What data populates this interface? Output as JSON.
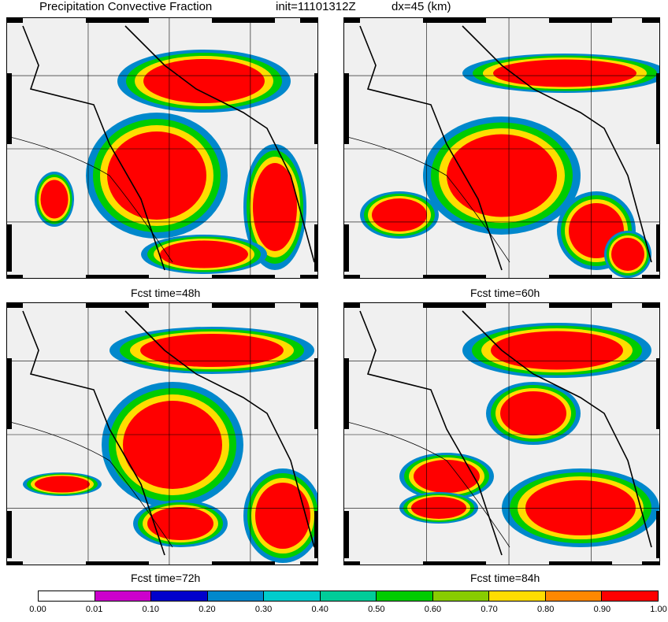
{
  "title": {
    "main": "Precipitation Convective Fraction",
    "init": "init=11101312Z",
    "dx": "dx=45 (km)"
  },
  "panels": [
    {
      "caption": ""
    },
    {
      "caption": ""
    },
    {
      "caption": "Fcst time=48h"
    },
    {
      "caption": "Fcst time=60h"
    }
  ],
  "bottom_captions": [
    "Fcst time=72h",
    "Fcst time=84h"
  ],
  "colorbar": {
    "colors": [
      "#ffffff",
      "#cc00cc",
      "#0000cc",
      "#0088cc",
      "#00cccc",
      "#00cc99",
      "#00cc00",
      "#88cc00",
      "#ffdd00",
      "#ff8800",
      "#ff0000"
    ],
    "ticks": [
      "0.00",
      "0.01",
      "0.10",
      "0.20",
      "0.30",
      "0.40",
      "0.50",
      "0.60",
      "0.70",
      "0.80",
      "0.90",
      "1.00"
    ]
  }
}
